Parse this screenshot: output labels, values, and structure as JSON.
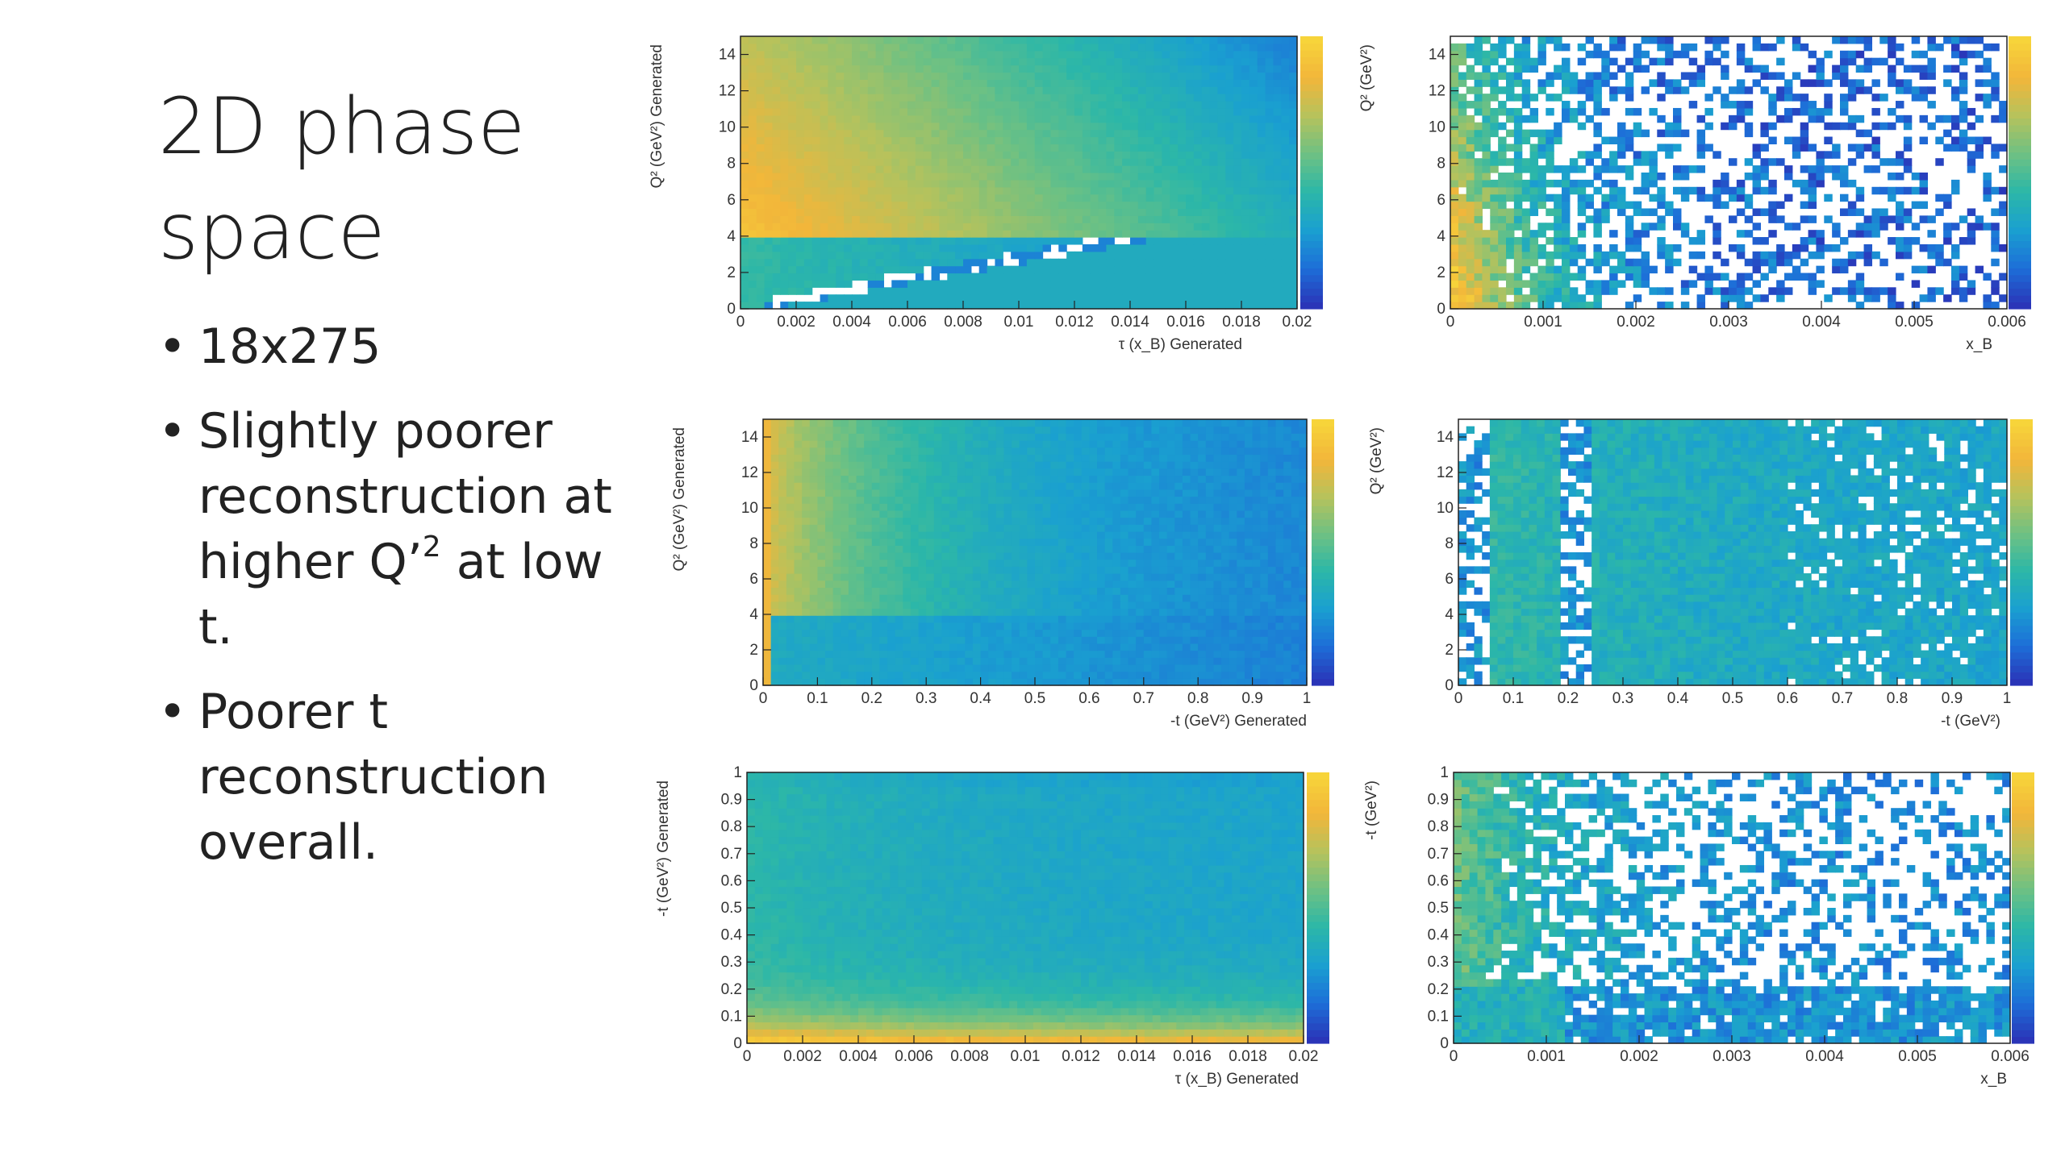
{
  "slide": {
    "title": "2D phase space",
    "bullets": {
      "b1": "18x275",
      "b2_pre": "Slightly poorer reconstruction at higher Q’",
      "b2_sup": "2",
      "b2_post": " at low t.",
      "b3": "Poorer t reconstruction overall."
    }
  },
  "colormap": [
    "#2a35b8",
    "#1d6fd8",
    "#1aa0d0",
    "#2cb7a8",
    "#6ec183",
    "#b6c25c",
    "#f2b63a",
    "#f7d43a"
  ],
  "chart_data": [
    {
      "type": "heatmap",
      "title": "",
      "xlabel": "τ (x_B) Generated",
      "ylabel": "Q² (GeV²) Generated",
      "xlim": [
        0,
        0.02
      ],
      "ylim": [
        0,
        15
      ],
      "x_ticks": [
        "0",
        "0.002",
        "0.004",
        "0.006",
        "0.008",
        "0.01",
        "0.012",
        "0.014",
        "0.016",
        "0.018",
        "0.02"
      ],
      "y_ticks": [
        "0",
        "2",
        "4",
        "6",
        "8",
        "10",
        "12",
        "14"
      ],
      "grid": false
    },
    {
      "type": "heatmap",
      "title": "",
      "xlabel": "x_B",
      "ylabel": "Q² (GeV²)",
      "xlim": [
        0,
        0.006
      ],
      "ylim": [
        0,
        15
      ],
      "x_ticks": [
        "0",
        "0.001",
        "0.002",
        "0.003",
        "0.004",
        "0.005",
        "0.006"
      ],
      "y_ticks": [
        "0",
        "2",
        "4",
        "6",
        "8",
        "10",
        "12",
        "14"
      ],
      "grid": false
    },
    {
      "type": "heatmap",
      "title": "",
      "xlabel": "-t (GeV²) Generated",
      "ylabel": "Q² (GeV²) Generated",
      "xlim": [
        0,
        1
      ],
      "ylim": [
        0,
        15
      ],
      "x_ticks": [
        "0",
        "0.1",
        "0.2",
        "0.3",
        "0.4",
        "0.5",
        "0.6",
        "0.7",
        "0.8",
        "0.9",
        "1"
      ],
      "y_ticks": [
        "0",
        "2",
        "4",
        "6",
        "8",
        "10",
        "12",
        "14"
      ],
      "grid": false
    },
    {
      "type": "heatmap",
      "title": "",
      "xlabel": "-t (GeV²)",
      "ylabel": "Q² (GeV²)",
      "xlim": [
        0,
        1
      ],
      "ylim": [
        0,
        15
      ],
      "x_ticks": [
        "0",
        "0.1",
        "0.2",
        "0.3",
        "0.4",
        "0.5",
        "0.6",
        "0.7",
        "0.8",
        "0.9",
        "1"
      ],
      "y_ticks": [
        "0",
        "2",
        "4",
        "6",
        "8",
        "10",
        "12",
        "14"
      ],
      "grid": false
    },
    {
      "type": "heatmap",
      "title": "",
      "xlabel": "τ (x_B) Generated",
      "ylabel": "-t (GeV²) Generated",
      "xlim": [
        0,
        0.02
      ],
      "ylim": [
        0,
        1
      ],
      "x_ticks": [
        "0",
        "0.002",
        "0.004",
        "0.006",
        "0.008",
        "0.01",
        "0.012",
        "0.014",
        "0.016",
        "0.018",
        "0.02"
      ],
      "y_ticks": [
        "0",
        "0.1",
        "0.2",
        "0.3",
        "0.4",
        "0.5",
        "0.6",
        "0.7",
        "0.8",
        "0.9",
        "1"
      ],
      "grid": false
    },
    {
      "type": "heatmap",
      "title": "",
      "xlabel": "x_B",
      "ylabel": "-t (GeV²)",
      "xlim": [
        0,
        0.006
      ],
      "ylim": [
        0,
        1
      ],
      "x_ticks": [
        "0",
        "0.001",
        "0.002",
        "0.003",
        "0.004",
        "0.005",
        "0.006"
      ],
      "y_ticks": [
        "0",
        "0.1",
        "0.2",
        "0.3",
        "0.4",
        "0.5",
        "0.6",
        "0.7",
        "0.8",
        "0.9",
        "1"
      ],
      "grid": false
    }
  ]
}
